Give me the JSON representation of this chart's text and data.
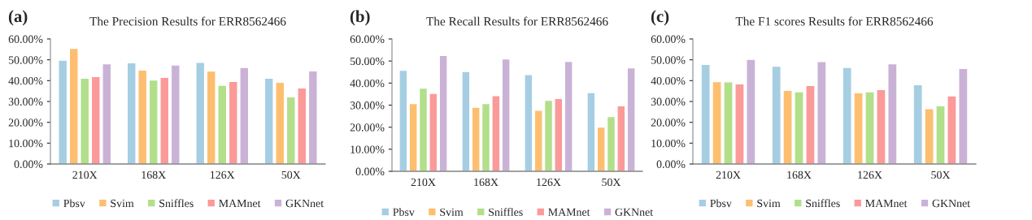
{
  "chart_data": [
    {
      "type": "bar",
      "title": "The Precision Results for ERR8562466",
      "annotations": [
        "(a)"
      ],
      "categories": [
        "210X",
        "168X",
        "126X",
        "50X"
      ],
      "series": [
        {
          "name": "Pbsv",
          "color": "#a6cee3",
          "values": [
            49.8,
            48.6,
            48.8,
            41.2
          ]
        },
        {
          "name": "Svim",
          "color": "#fdbf6f",
          "values": [
            55.5,
            45.1,
            44.6,
            39.2
          ]
        },
        {
          "name": "Sniffles",
          "color": "#b2df8a",
          "values": [
            41.2,
            40.3,
            37.8,
            32.2
          ]
        },
        {
          "name": "MAMnet",
          "color": "#fb9a99",
          "values": [
            42.0,
            41.6,
            39.6,
            36.5
          ]
        },
        {
          "name": "GKNnet",
          "color": "#cab2d6",
          "values": [
            48.1,
            47.5,
            46.3,
            44.7
          ]
        }
      ],
      "ylim": [
        0,
        60
      ],
      "yticks": [
        {
          "value": 0,
          "label": "0.00%"
        },
        {
          "value": 10,
          "label": "10.00%"
        },
        {
          "value": 20,
          "label": "20.00%"
        },
        {
          "value": 30,
          "label": "30.00%"
        },
        {
          "value": 40,
          "label": "40.00%"
        },
        {
          "value": 50,
          "label": "50.00%"
        },
        {
          "value": 60,
          "label": "60.00%"
        }
      ],
      "legend": "bottom"
    },
    {
      "type": "bar",
      "title": "The Recall Results for ERR8562466",
      "annotations": [
        "(b)"
      ],
      "categories": [
        "210X",
        "168X",
        "126X",
        "50X"
      ],
      "series": [
        {
          "name": "Pbsv",
          "color": "#a6cee3",
          "values": [
            45.8,
            45.3,
            43.9,
            35.7
          ]
        },
        {
          "name": "Svim",
          "color": "#fdbf6f",
          "values": [
            30.7,
            29.1,
            27.7,
            20.0
          ]
        },
        {
          "name": "Sniffles",
          "color": "#b2df8a",
          "values": [
            37.7,
            30.7,
            32.2,
            24.8
          ]
        },
        {
          "name": "MAMnet",
          "color": "#fb9a99",
          "values": [
            35.3,
            34.3,
            33.0,
            29.7
          ]
        },
        {
          "name": "GKNnet",
          "color": "#cab2d6",
          "values": [
            52.5,
            51.0,
            49.9,
            46.9
          ]
        }
      ],
      "ylim": [
        0,
        60
      ],
      "yticks": [
        {
          "value": 0,
          "label": "0.00%"
        },
        {
          "value": 10,
          "label": "10.00%"
        },
        {
          "value": 20,
          "label": "20.00%"
        },
        {
          "value": 30,
          "label": "30.00%"
        },
        {
          "value": 40,
          "label": "40.00%"
        },
        {
          "value": 50,
          "label": "50.00%"
        },
        {
          "value": 60,
          "label": "60.00%"
        }
      ],
      "legend": "bottom"
    },
    {
      "type": "bar",
      "title": "The F1 scores Results for ERR8562466",
      "annotations": [
        "(c)"
      ],
      "categories": [
        "210X",
        "168X",
        "126X",
        "50X"
      ],
      "series": [
        {
          "name": "Pbsv",
          "color": "#a6cee3",
          "values": [
            47.8,
            46.9,
            46.3,
            38.1
          ]
        },
        {
          "name": "Svim",
          "color": "#fdbf6f",
          "values": [
            39.5,
            35.3,
            34.2,
            26.6
          ]
        },
        {
          "name": "Sniffles",
          "color": "#b2df8a",
          "values": [
            39.4,
            34.7,
            34.7,
            27.9
          ]
        },
        {
          "name": "MAMnet",
          "color": "#fb9a99",
          "values": [
            38.5,
            37.7,
            35.7,
            32.7
          ]
        },
        {
          "name": "GKNnet",
          "color": "#cab2d6",
          "values": [
            50.2,
            49.2,
            48.1,
            45.9
          ]
        }
      ],
      "ylim": [
        0,
        60
      ],
      "yticks": [
        {
          "value": 0,
          "label": "0.00%"
        },
        {
          "value": 10,
          "label": "10.00%"
        },
        {
          "value": 20,
          "label": "20.00%"
        },
        {
          "value": 30,
          "label": "30.00%"
        },
        {
          "value": 40,
          "label": "40.00%"
        },
        {
          "value": 50,
          "label": "50.00%"
        },
        {
          "value": 60,
          "label": "60.00%"
        }
      ],
      "legend": "bottom"
    }
  ]
}
